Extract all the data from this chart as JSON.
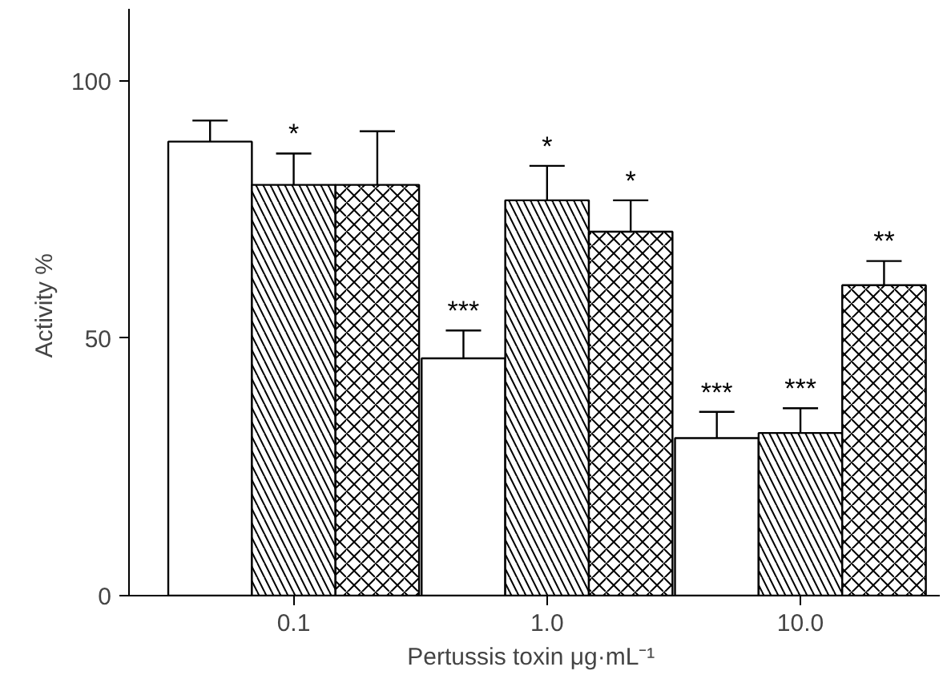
{
  "chart_data": {
    "type": "bar",
    "xlabel": "Pertussis toxin  μg·mL⁻¹",
    "ylabel": "Activity  %",
    "categories": [
      "0.1",
      "1.0",
      "10.0"
    ],
    "ylim": [
      0,
      114
    ],
    "yticks": [
      0,
      50,
      100
    ],
    "grid": false,
    "series": [
      {
        "color": "#ffffff",
        "values": [
          88.2,
          46.1,
          30.6
        ],
        "errors": [
          4.1,
          5.4,
          5.1
        ],
        "value_labels": [
          null,
          "***",
          "***"
        ]
      },
      {
        "color": "#ffffff",
        "values": [
          79.8,
          76.8,
          31.6
        ],
        "errors": [
          6.1,
          6.7,
          4.8
        ],
        "value_labels": [
          "*",
          "*",
          "***"
        ]
      },
      {
        "color": "#ffffff",
        "values": [
          79.8,
          70.7,
          60.3
        ],
        "errors": [
          10.4,
          6.1,
          4.7
        ],
        "value_labels": [
          null,
          "*",
          "**"
        ]
      }
    ]
  }
}
